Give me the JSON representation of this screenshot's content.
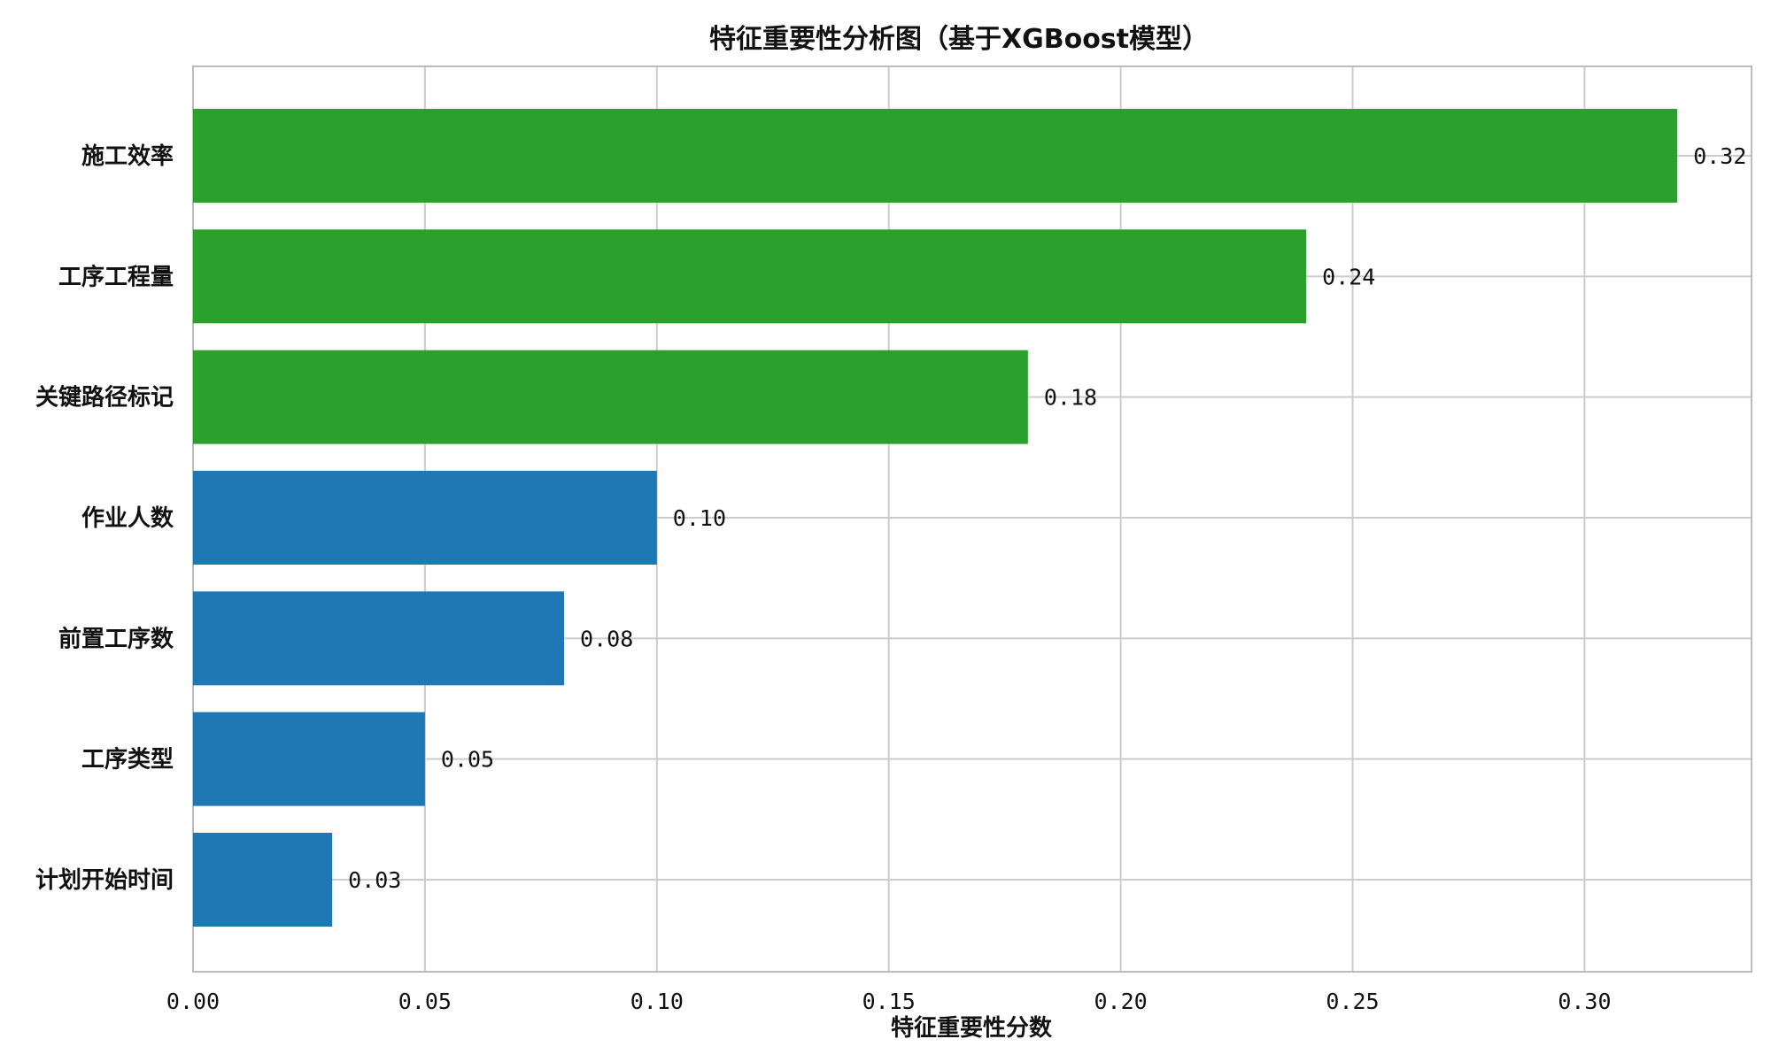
{
  "chart_data": {
    "type": "bar",
    "orientation": "horizontal",
    "title": "特征重要性分析图（基于XGBoost模型）",
    "xlabel": "特征重要性分数",
    "ylabel": "",
    "xlim": [
      0,
      0.336
    ],
    "xticks": [
      "0.00",
      "0.05",
      "0.10",
      "0.15",
      "0.20",
      "0.25",
      "0.30"
    ],
    "categories": [
      "施工效率",
      "工序工程量",
      "关键路径标记",
      "作业人数",
      "前置工序数",
      "工序类型",
      "计划开始时间"
    ],
    "values": [
      0.32,
      0.24,
      0.18,
      0.1,
      0.08,
      0.05,
      0.03
    ],
    "value_labels": [
      "0.32",
      "0.24",
      "0.18",
      "0.10",
      "0.08",
      "0.05",
      "0.03"
    ],
    "bar_colors": [
      "#2ca02c",
      "#2ca02c",
      "#2ca02c",
      "#1f77b4",
      "#1f77b4",
      "#1f77b4",
      "#1f77b4"
    ],
    "grid": true,
    "legend": "none",
    "colors": {
      "highlight": "#2ca02c",
      "default": "#1f77b4",
      "grid": "#cccccc",
      "axis": "#bbbbbb"
    }
  }
}
